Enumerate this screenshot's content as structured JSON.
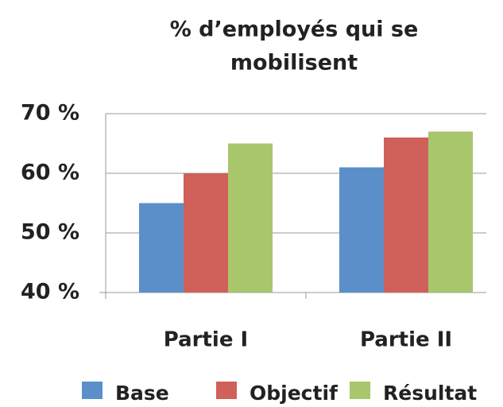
{
  "chart_data": {
    "type": "bar",
    "title": [
      "% d’employés qui se",
      "mobilisent"
    ],
    "categories": [
      "Partie I",
      "Partie II"
    ],
    "series": [
      {
        "name": "Base",
        "color": "#5b8fc9",
        "values": [
          55,
          61
        ]
      },
      {
        "name": "Objectif",
        "color": "#d0605a",
        "values": [
          60,
          66
        ]
      },
      {
        "name": "Résultat",
        "color": "#a8c66c",
        "values": [
          65,
          67
        ]
      }
    ],
    "ylim": [
      40,
      70
    ],
    "yticks": [
      {
        "value": 40,
        "label": "40 %"
      },
      {
        "value": 50,
        "label": "50 %"
      },
      {
        "value": 60,
        "label": "60 %"
      },
      {
        "value": 70,
        "label": "70 %"
      }
    ],
    "grid": true,
    "legend": "bottom"
  }
}
